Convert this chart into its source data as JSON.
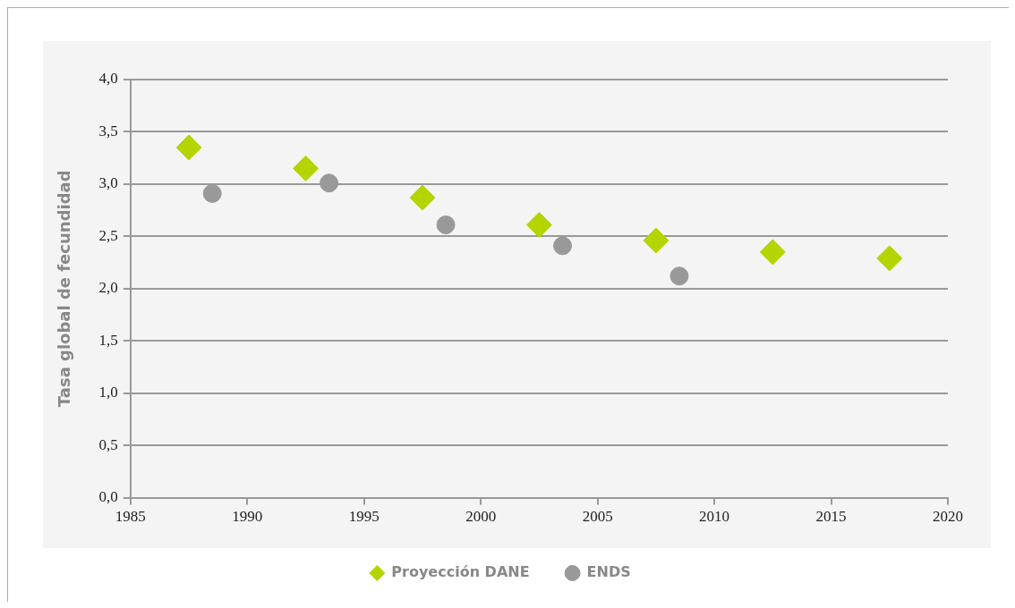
{
  "chart_data": {
    "type": "scatter",
    "ylabel": "Tasa global de fecundidad",
    "series": [
      {
        "name": "Proyección DANE",
        "color": "#b5d400",
        "marker": "diamond",
        "x": [
          1987.5,
          1992.5,
          1997.5,
          2002.5,
          2007.5,
          2012.5,
          2017.5
        ],
        "values": [
          3.35,
          3.15,
          2.87,
          2.61,
          2.46,
          2.35,
          2.29
        ]
      },
      {
        "name": "ENDS",
        "color": "#999999",
        "marker": "circle",
        "x": [
          1988.5,
          1993.5,
          1998.5,
          2003.5,
          2008.5
        ],
        "values": [
          2.91,
          3.01,
          2.61,
          2.41,
          2.12
        ]
      }
    ],
    "xlim": [
      1985,
      2020
    ],
    "xticks": [
      1985,
      1990,
      1995,
      2000,
      2005,
      2010,
      2015,
      2020
    ],
    "ylim": [
      0,
      4
    ],
    "yticks": [
      {
        "value": 0,
        "label": "0,0"
      },
      {
        "value": 0.5,
        "label": "0,5"
      },
      {
        "value": 1,
        "label": "1,0"
      },
      {
        "value": 1.5,
        "label": "1,5"
      },
      {
        "value": 2,
        "label": "2,0"
      },
      {
        "value": 2.5,
        "label": "2,5"
      },
      {
        "value": 3,
        "label": "3,0"
      },
      {
        "value": 3.5,
        "label": "3,5"
      },
      {
        "value": 4,
        "label": "4,0"
      }
    ],
    "grid": "y",
    "legend": "bottom"
  }
}
